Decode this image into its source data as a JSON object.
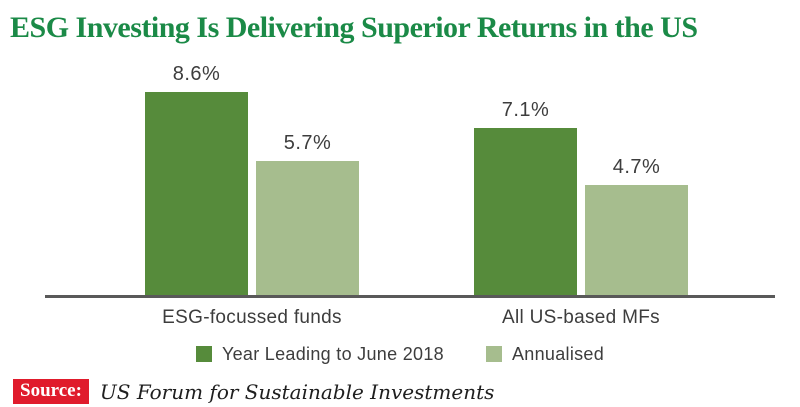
{
  "title": "ESG Investing Is Delivering Superior Returns in the US",
  "chart_data": {
    "type": "bar",
    "title": "ESG Investing Is Delivering Superior Returns in the US",
    "categories": [
      "ESG-focussed funds",
      "All US-based MFs"
    ],
    "series": [
      {
        "name": "Year Leading to June 2018",
        "color": "#568b3b",
        "values": [
          8.6,
          7.1
        ],
        "labels": [
          "8.6%",
          "7.1%"
        ]
      },
      {
        "name": "Annualised",
        "color": "#a6bd8e",
        "values": [
          5.7,
          4.7
        ],
        "labels": [
          "5.7%",
          "4.7%"
        ]
      }
    ],
    "xlabel": "",
    "ylabel": "",
    "ylim": [
      0,
      10
    ],
    "grid": false,
    "legend_position": "bottom",
    "value_label_suffix": "%"
  },
  "source": {
    "label": "Source:",
    "text": "US Forum for Sustainable Investments"
  },
  "colors": {
    "title_green": "#1b8a47",
    "dark_green": "#568b3b",
    "light_green": "#a6bd8e",
    "axis_line": "#595959",
    "label_text": "#3d3d3d",
    "source_badge_red": "#e01b2c"
  }
}
